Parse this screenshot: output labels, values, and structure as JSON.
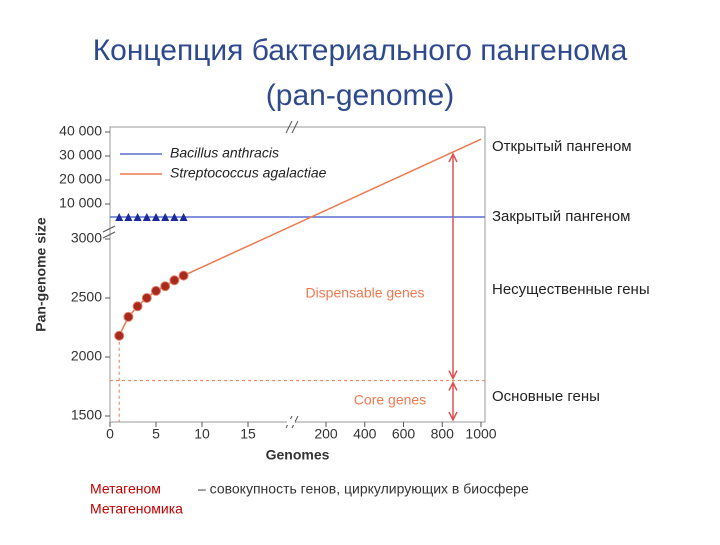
{
  "title": [
    "Концепция бактериального пангенома",
    "(pan-genome)"
  ],
  "chart_data": {
    "type": "line",
    "x_label": "Genomes",
    "y_label": "Pan-genome size",
    "xlim": [
      0,
      1000
    ],
    "xbreak": [
      15,
      200
    ],
    "ylim": [
      1500,
      40000
    ],
    "ybreak": [
      3000,
      10000
    ],
    "xticks": [
      0,
      5,
      10,
      15,
      200,
      400,
      600,
      800,
      1000
    ],
    "yticks": [
      1500,
      2000,
      2500,
      3000,
      {
        "value": 10000,
        "label": "10 000"
      },
      {
        "value": 20000,
        "label": "20 000"
      },
      {
        "value": 30000,
        "label": "30 000"
      },
      {
        "value": 40000,
        "label": "40 000"
      }
    ],
    "legend": "upper-left",
    "series": [
      {
        "name": "Bacillus anthracis",
        "color": "#5b6fd0",
        "marker": "triangle",
        "x": [
          1,
          2,
          3,
          4,
          5,
          6,
          7,
          8
        ],
        "values": [
          4600,
          4600,
          4600,
          4600,
          4600,
          4600,
          4600,
          4600
        ]
      },
      {
        "name": "Streptococcus agalactiae",
        "color": "#f07850",
        "marker": "circle",
        "x": [
          1,
          2,
          3,
          4,
          5,
          6,
          7,
          8,
          1000
        ],
        "values": [
          2180,
          2340,
          2430,
          2500,
          2560,
          2600,
          2650,
          2690,
          37000
        ]
      }
    ],
    "annotations": [
      {
        "text": "Core genes",
        "value": 1800
      },
      {
        "text": "Dispensable genes"
      }
    ]
  },
  "side_labels": [
    "Открытый пангеном",
    "Закрытый пангеном",
    "Несущественные гены",
    "Основные гены"
  ],
  "footer": {
    "term1": "Метагеном",
    "definition1": "– совокупность генов, циркулирующих в биосфере",
    "term2": "Метагеномика"
  }
}
